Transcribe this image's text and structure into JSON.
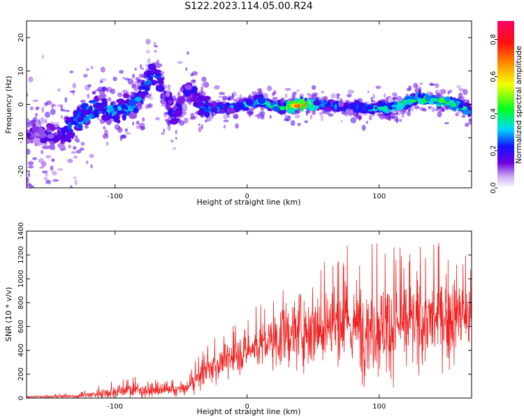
{
  "title": "S122.2023.114.05.00.R24",
  "chart_data": [
    {
      "type": "heatmap",
      "title": "",
      "xlabel": "Height of straight line (km)",
      "ylabel": "Frequency (Hz)",
      "xlim": [
        -167,
        170
      ],
      "ylim": [
        -25,
        25
      ],
      "xticks": [
        -100,
        0,
        100
      ],
      "yticks": [
        -20,
        -10,
        0,
        10,
        20
      ],
      "colorbar": {
        "label": "Normalized spectral amplitude",
        "range": [
          0.0,
          0.9
        ],
        "ticks": [
          "0.0",
          "0.2",
          "0.4",
          "0.6",
          "0.8"
        ]
      },
      "ridge_profile": [
        {
          "x": -160,
          "y": -8,
          "strength": 0.15
        },
        {
          "x": -145,
          "y": -10,
          "strength": 0.2
        },
        {
          "x": -125,
          "y": -4,
          "strength": 0.3
        },
        {
          "x": -115,
          "y": -1,
          "strength": 0.3
        },
        {
          "x": -100,
          "y": -2,
          "strength": 0.3
        },
        {
          "x": -85,
          "y": 0,
          "strength": 0.3
        },
        {
          "x": -70,
          "y": 10,
          "strength": 0.25
        },
        {
          "x": -55,
          "y": -4,
          "strength": 0.2
        },
        {
          "x": -45,
          "y": 4,
          "strength": 0.2
        },
        {
          "x": -30,
          "y": -1,
          "strength": 0.3
        },
        {
          "x": -10,
          "y": -1,
          "strength": 0.3
        },
        {
          "x": 10,
          "y": 1,
          "strength": 0.35
        },
        {
          "x": 25,
          "y": -1,
          "strength": 0.4
        },
        {
          "x": 40,
          "y": 0,
          "strength": 0.8
        },
        {
          "x": 55,
          "y": 0,
          "strength": 0.3
        },
        {
          "x": 75,
          "y": -1,
          "strength": 0.25
        },
        {
          "x": 95,
          "y": -1,
          "strength": 0.3
        },
        {
          "x": 110,
          "y": -1,
          "strength": 0.4
        },
        {
          "x": 130,
          "y": 2,
          "strength": 0.4
        },
        {
          "x": 145,
          "y": 1,
          "strength": 0.45
        },
        {
          "x": 160,
          "y": 0,
          "strength": 0.4
        },
        {
          "x": 168,
          "y": -2,
          "strength": 0.3
        }
      ]
    },
    {
      "type": "line",
      "title": "",
      "xlabel": "Height of straight line (km)",
      "ylabel": "SNR (10 * v/v)",
      "xlim": [
        -167,
        170
      ],
      "ylim": [
        0,
        1400
      ],
      "xticks": [
        -100,
        0,
        100
      ],
      "yticks": [
        0,
        200,
        400,
        600,
        800,
        1000,
        1200,
        1400
      ],
      "color": "#ee2222",
      "envelope": [
        {
          "x": -167,
          "mean": 10,
          "max": 30
        },
        {
          "x": -130,
          "mean": 15,
          "max": 40
        },
        {
          "x": -110,
          "mean": 40,
          "max": 120
        },
        {
          "x": -90,
          "mean": 70,
          "max": 190
        },
        {
          "x": -60,
          "mean": 60,
          "max": 150
        },
        {
          "x": -45,
          "mean": 80,
          "max": 180
        },
        {
          "x": -35,
          "mean": 200,
          "max": 420
        },
        {
          "x": -20,
          "mean": 300,
          "max": 550
        },
        {
          "x": 0,
          "mean": 400,
          "max": 700
        },
        {
          "x": 20,
          "mean": 480,
          "max": 900
        },
        {
          "x": 40,
          "mean": 580,
          "max": 1150
        },
        {
          "x": 60,
          "mean": 620,
          "max": 1300
        },
        {
          "x": 80,
          "mean": 600,
          "max": 1280
        },
        {
          "x": 100,
          "mean": 600,
          "max": 1350
        },
        {
          "x": 120,
          "mean": 620,
          "max": 1250
        },
        {
          "x": 140,
          "mean": 650,
          "max": 1300
        },
        {
          "x": 160,
          "mean": 700,
          "max": 1400
        },
        {
          "x": 170,
          "mean": 650,
          "max": 1100
        }
      ]
    }
  ]
}
